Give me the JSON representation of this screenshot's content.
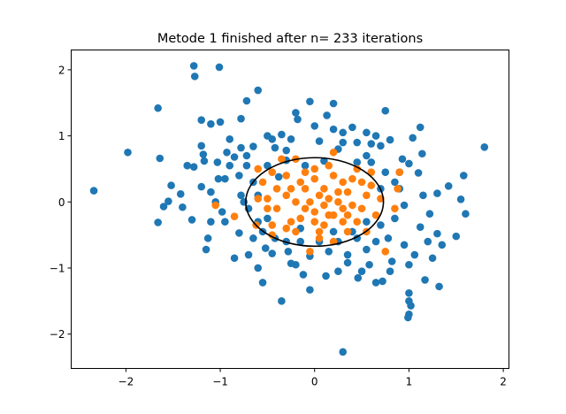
{
  "chart_data": {
    "type": "scatter",
    "title": "Metode 1 finished after n= 233 iterations",
    "xlabel": "",
    "ylabel": "",
    "xlim": [
      -2.58,
      2.06
    ],
    "ylim": [
      -2.52,
      2.3
    ],
    "xticks": [
      -2,
      -1,
      0,
      1,
      2
    ],
    "yticks": [
      -2,
      -1,
      0,
      1,
      2
    ],
    "xtick_labels": [
      "−2",
      "−1",
      "0",
      "1",
      "2"
    ],
    "ytick_labels": [
      "−2",
      "−1",
      "0",
      "1",
      "2"
    ],
    "grid": false,
    "colors": {
      "series_blue": "#1f77b4",
      "series_orange": "#ff7f0e",
      "ellipse": "#000000"
    },
    "ellipse": {
      "cx": 0.0,
      "cy": 0.0,
      "rx": 0.73,
      "ry": 0.67
    },
    "series": [
      {
        "color": "#1f77b4",
        "points": [
          [
            -2.34,
            0.17
          ],
          [
            -1.98,
            0.75
          ],
          [
            -1.66,
            1.42
          ],
          [
            -1.64,
            0.66
          ],
          [
            -1.66,
            -0.31
          ],
          [
            -1.52,
            0.25
          ],
          [
            -1.55,
            0.01
          ],
          [
            -1.42,
            0.12
          ],
          [
            -1.28,
            2.06
          ],
          [
            -1.27,
            1.9
          ],
          [
            -1.01,
            2.04
          ],
          [
            -1.2,
            1.24
          ],
          [
            -1.1,
            1.18
          ],
          [
            -1.0,
            1.21
          ],
          [
            -0.78,
            1.26
          ],
          [
            -0.6,
            1.69
          ],
          [
            -0.72,
            1.53
          ],
          [
            -1.2,
            0.85
          ],
          [
            -1.17,
            0.62
          ],
          [
            -1.28,
            0.53
          ],
          [
            -1.03,
            0.6
          ],
          [
            -0.93,
            0.75
          ],
          [
            -0.85,
            0.68
          ],
          [
            -0.72,
            0.7
          ],
          [
            -0.65,
            0.84
          ],
          [
            -0.45,
            0.95
          ],
          [
            -0.42,
            0.82
          ],
          [
            -0.3,
            0.63
          ],
          [
            -0.2,
            1.35
          ],
          [
            -0.18,
            1.25
          ],
          [
            -0.05,
            1.52
          ],
          [
            0.13,
            1.31
          ],
          [
            0.2,
            1.49
          ],
          [
            0.4,
            1.13
          ],
          [
            0.55,
            1.05
          ],
          [
            0.75,
            1.38
          ],
          [
            0.8,
            0.94
          ],
          [
            1.04,
            0.97
          ],
          [
            1.12,
            1.13
          ],
          [
            1.14,
            0.73
          ],
          [
            1.0,
            0.58
          ],
          [
            0.9,
            0.45
          ],
          [
            1.1,
            0.44
          ],
          [
            1.3,
            0.13
          ],
          [
            1.22,
            -0.18
          ],
          [
            1.12,
            -0.38
          ],
          [
            1.42,
            0.24
          ],
          [
            1.5,
            -0.52
          ],
          [
            1.55,
            0.04
          ],
          [
            1.58,
            0.4
          ],
          [
            1.6,
            -0.18
          ],
          [
            1.8,
            0.83
          ],
          [
            1.3,
            -0.48
          ],
          [
            1.25,
            -0.85
          ],
          [
            1.32,
            -1.28
          ],
          [
            1.17,
            -1.18
          ],
          [
            1.06,
            -0.8
          ],
          [
            1.0,
            -1.38
          ],
          [
            1.0,
            -1.5
          ],
          [
            1.0,
            -1.7
          ],
          [
            1.02,
            -1.57
          ],
          [
            0.99,
            -1.75
          ],
          [
            0.82,
            -0.9
          ],
          [
            0.72,
            -1.2
          ],
          [
            0.65,
            -1.22
          ],
          [
            0.58,
            -0.95
          ],
          [
            0.46,
            -1.15
          ],
          [
            0.35,
            -0.92
          ],
          [
            0.3,
            -2.27
          ],
          [
            0.12,
            -1.12
          ],
          [
            -0.05,
            -1.33
          ],
          [
            -0.12,
            -1.1
          ],
          [
            -0.25,
            -0.93
          ],
          [
            -0.35,
            -1.5
          ],
          [
            -0.55,
            -1.22
          ],
          [
            -0.45,
            -0.78
          ],
          [
            -0.52,
            -0.7
          ],
          [
            -0.85,
            -0.85
          ],
          [
            -0.8,
            -0.47
          ],
          [
            -0.95,
            -0.3
          ],
          [
            -1.1,
            -0.3
          ],
          [
            -1.13,
            -0.55
          ],
          [
            -1.15,
            -0.72
          ],
          [
            -1.3,
            -0.27
          ],
          [
            -1.4,
            -0.08
          ],
          [
            -1.6,
            -0.07
          ],
          [
            -1.35,
            0.55
          ],
          [
            -1.2,
            0.23
          ],
          [
            -1.1,
            0.15
          ],
          [
            -1.05,
            0.0
          ],
          [
            -0.95,
            0.35
          ],
          [
            -0.9,
            0.55
          ],
          [
            -0.8,
            0.4
          ],
          [
            -0.78,
            0.1
          ],
          [
            -0.6,
            0.1
          ],
          [
            -0.65,
            0.3
          ],
          [
            -0.7,
            -0.1
          ],
          [
            -0.72,
            0.55
          ],
          [
            -0.5,
            0.55
          ],
          [
            -0.38,
            0.38
          ],
          [
            -0.1,
            0.55
          ],
          [
            0.05,
            0.92
          ],
          [
            0.1,
            0.62
          ],
          [
            0.25,
            0.8
          ],
          [
            0.3,
            0.9
          ],
          [
            0.45,
            0.9
          ],
          [
            0.55,
            0.7
          ],
          [
            0.6,
            0.6
          ],
          [
            0.7,
            0.85
          ],
          [
            0.75,
            0.45
          ],
          [
            0.85,
            0.3
          ],
          [
            0.9,
            0.2
          ],
          [
            0.95,
            -0.05
          ],
          [
            0.85,
            -0.25
          ],
          [
            0.7,
            -0.35
          ],
          [
            0.78,
            -0.55
          ],
          [
            0.65,
            -0.6
          ],
          [
            0.55,
            -0.72
          ],
          [
            0.45,
            -0.55
          ],
          [
            0.35,
            -0.8
          ],
          [
            0.25,
            -0.6
          ],
          [
            0.15,
            -0.75
          ],
          [
            0.05,
            -0.6
          ],
          [
            -0.05,
            -0.82
          ],
          [
            -0.15,
            -0.6
          ],
          [
            -0.28,
            -0.75
          ],
          [
            -0.42,
            -0.55
          ],
          [
            -0.55,
            -0.45
          ],
          [
            -0.65,
            -0.55
          ],
          [
            -0.98,
            -0.15
          ],
          [
            -0.75,
            0.0
          ],
          [
            -0.6,
            -0.3
          ],
          [
            -1.02,
            0.35
          ],
          [
            -1.18,
            0.72
          ],
          [
            -0.9,
            0.95
          ],
          [
            -0.5,
            1.0
          ],
          [
            -0.35,
            1.02
          ],
          [
            -0.25,
            0.95
          ],
          [
            0.0,
            1.15
          ],
          [
            0.2,
            1.1
          ],
          [
            0.3,
            1.05
          ],
          [
            0.6,
            0.88
          ],
          [
            0.65,
            1.0
          ],
          [
            0.93,
            0.65
          ],
          [
            1.15,
            0.1
          ],
          [
            1.2,
            -0.6
          ],
          [
            1.35,
            -0.65
          ],
          [
            0.95,
            -0.65
          ],
          [
            1.0,
            -0.95
          ],
          [
            0.8,
            -1.05
          ],
          [
            0.5,
            -1.05
          ],
          [
            0.25,
            -1.05
          ],
          [
            -0.2,
            -0.95
          ],
          [
            -0.6,
            -1.0
          ],
          [
            -0.7,
            -0.8
          ],
          [
            -0.78,
            0.82
          ],
          [
            -0.3,
            0.78
          ],
          [
            0.45,
            0.6
          ],
          [
            0.7,
            0.2
          ],
          [
            0.55,
            -0.3
          ],
          [
            0.4,
            -0.45
          ],
          [
            0.2,
            -0.45
          ],
          [
            -0.15,
            -0.4
          ],
          [
            -0.3,
            -0.6
          ],
          [
            -0.5,
            -0.25
          ]
        ]
      },
      {
        "color": "#ff7f0e",
        "points": [
          [
            -0.6,
            0.5
          ],
          [
            -0.55,
            0.3
          ],
          [
            -0.6,
            0.05
          ],
          [
            -0.5,
            0.05
          ],
          [
            -0.5,
            -0.1
          ],
          [
            -0.62,
            -0.35
          ],
          [
            -0.45,
            -0.35
          ],
          [
            -0.45,
            -0.5
          ],
          [
            -0.3,
            -0.4
          ],
          [
            -0.4,
            0.2
          ],
          [
            -0.3,
            0.1
          ],
          [
            -0.2,
            0.0
          ],
          [
            -0.15,
            0.3
          ],
          [
            -0.1,
            0.45
          ],
          [
            0.0,
            0.35
          ],
          [
            0.1,
            0.2
          ],
          [
            0.2,
            0.4
          ],
          [
            0.15,
            0.55
          ],
          [
            0.3,
            0.3
          ],
          [
            0.4,
            0.35
          ],
          [
            0.35,
            0.15
          ],
          [
            0.25,
            0.0
          ],
          [
            0.1,
            -0.05
          ],
          [
            0.0,
            -0.15
          ],
          [
            -0.1,
            -0.1
          ],
          [
            -0.15,
            -0.25
          ],
          [
            -0.25,
            -0.3
          ],
          [
            0.0,
            -0.3
          ],
          [
            0.1,
            -0.35
          ],
          [
            0.2,
            -0.2
          ],
          [
            0.3,
            -0.3
          ],
          [
            0.35,
            -0.45
          ],
          [
            0.45,
            -0.3
          ],
          [
            0.5,
            -0.1
          ],
          [
            0.55,
            0.1
          ],
          [
            0.6,
            0.25
          ],
          [
            0.45,
            0.5
          ],
          [
            0.65,
            -0.2
          ],
          [
            0.7,
            0.05
          ],
          [
            0.85,
            -0.1
          ],
          [
            0.88,
            0.2
          ],
          [
            0.75,
            -0.75
          ],
          [
            0.2,
            -0.6
          ],
          [
            0.05,
            -0.55
          ],
          [
            -0.05,
            -0.75
          ],
          [
            -0.35,
            0.65
          ],
          [
            0.2,
            0.75
          ],
          [
            -0.05,
            0.0
          ],
          [
            0.05,
            0.1
          ],
          [
            -0.25,
            0.2
          ],
          [
            -0.4,
            -0.1
          ],
          [
            0.3,
            -0.1
          ],
          [
            0.4,
            -0.05
          ],
          [
            -0.1,
            0.2
          ],
          [
            0.15,
            -0.2
          ],
          [
            -0.2,
            -0.45
          ],
          [
            0.25,
            0.15
          ],
          [
            -0.3,
            0.4
          ],
          [
            -1.05,
            -0.05
          ],
          [
            -0.85,
            -0.22
          ],
          [
            0.9,
            0.45
          ],
          [
            0.6,
            0.45
          ],
          [
            -0.2,
            0.65
          ],
          [
            0.15,
            0.05
          ],
          [
            0.0,
            0.5
          ],
          [
            0.5,
            0.3
          ],
          [
            0.35,
            -0.2
          ],
          [
            -0.45,
            0.45
          ],
          [
            0.55,
            -0.45
          ],
          [
            0.05,
            -0.45
          ]
        ]
      }
    ]
  }
}
